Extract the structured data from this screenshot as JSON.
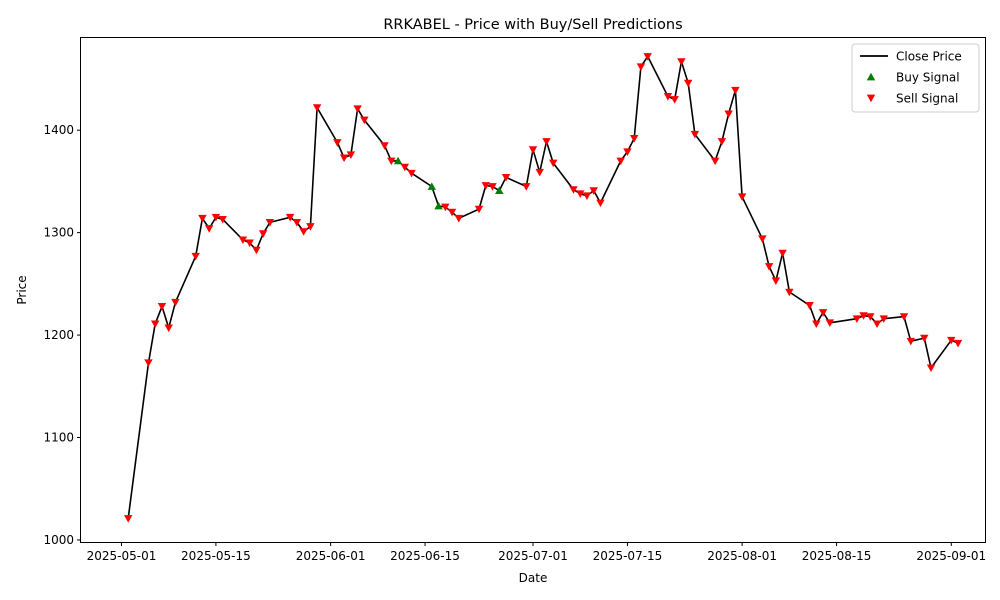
{
  "chart_data": {
    "type": "line",
    "title": "RRKABEL - Price with Buy/Sell Predictions",
    "xlabel": "Date",
    "ylabel": "Price",
    "xlim": [
      "2025-04-25",
      "2025-09-06"
    ],
    "ylim": [
      998,
      1490
    ],
    "x_ticks": [
      "2025-05-01",
      "2025-05-15",
      "2025-06-01",
      "2025-06-15",
      "2025-07-01",
      "2025-07-15",
      "2025-08-01",
      "2025-08-15",
      "2025-09-01"
    ],
    "y_ticks": [
      1000,
      1100,
      1200,
      1300,
      1400
    ],
    "grid": false,
    "legend": {
      "placement": "top-right",
      "entries": [
        {
          "label": "Close Price",
          "marker": "line",
          "color": "#000000"
        },
        {
          "label": "Buy Signal",
          "marker": "triangle-up",
          "color": "#008000"
        },
        {
          "label": "Sell Signal",
          "marker": "triangle-down",
          "color": "#ff0000"
        }
      ]
    },
    "series": [
      {
        "name": "Close Price",
        "color": "#000000",
        "points": [
          [
            "2025-05-02",
            1021
          ],
          [
            "2025-05-05",
            1173
          ],
          [
            "2025-05-06",
            1211
          ],
          [
            "2025-05-07",
            1228
          ],
          [
            "2025-05-08",
            1207
          ],
          [
            "2025-05-09",
            1232
          ],
          [
            "2025-05-12",
            1277
          ],
          [
            "2025-05-13",
            1314
          ],
          [
            "2025-05-14",
            1304
          ],
          [
            "2025-05-15",
            1315
          ],
          [
            "2025-05-16",
            1313
          ],
          [
            "2025-05-19",
            1293
          ],
          [
            "2025-05-20",
            1290
          ],
          [
            "2025-05-21",
            1283
          ],
          [
            "2025-05-22",
            1299
          ],
          [
            "2025-05-23",
            1310
          ],
          [
            "2025-05-26",
            1315
          ],
          [
            "2025-05-27",
            1310
          ],
          [
            "2025-05-28",
            1301
          ],
          [
            "2025-05-29",
            1306
          ],
          [
            "2025-05-30",
            1422
          ],
          [
            "2025-06-02",
            1388
          ],
          [
            "2025-06-03",
            1373
          ],
          [
            "2025-06-04",
            1376
          ],
          [
            "2025-06-05",
            1421
          ],
          [
            "2025-06-06",
            1410
          ],
          [
            "2025-06-09",
            1385
          ],
          [
            "2025-06-10",
            1370
          ],
          [
            "2025-06-11",
            1370
          ],
          [
            "2025-06-12",
            1364
          ],
          [
            "2025-06-13",
            1358
          ],
          [
            "2025-06-16",
            1345
          ],
          [
            "2025-06-17",
            1326
          ],
          [
            "2025-06-18",
            1325
          ],
          [
            "2025-06-19",
            1320
          ],
          [
            "2025-06-20",
            1314
          ],
          [
            "2025-06-23",
            1323
          ],
          [
            "2025-06-24",
            1346
          ],
          [
            "2025-06-25",
            1345
          ],
          [
            "2025-06-26",
            1341
          ],
          [
            "2025-06-27",
            1354
          ],
          [
            "2025-06-30",
            1345
          ],
          [
            "2025-07-01",
            1381
          ],
          [
            "2025-07-02",
            1359
          ],
          [
            "2025-07-03",
            1389
          ],
          [
            "2025-07-04",
            1368
          ],
          [
            "2025-07-07",
            1342
          ],
          [
            "2025-07-08",
            1338
          ],
          [
            "2025-07-09",
            1336
          ],
          [
            "2025-07-10",
            1341
          ],
          [
            "2025-07-11",
            1329
          ],
          [
            "2025-07-14",
            1370
          ],
          [
            "2025-07-15",
            1379
          ],
          [
            "2025-07-16",
            1392
          ],
          [
            "2025-07-17",
            1462
          ],
          [
            "2025-07-18",
            1472
          ],
          [
            "2025-07-21",
            1433
          ],
          [
            "2025-07-22",
            1430
          ],
          [
            "2025-07-23",
            1467
          ],
          [
            "2025-07-24",
            1446
          ],
          [
            "2025-07-25",
            1396
          ],
          [
            "2025-07-28",
            1370
          ],
          [
            "2025-07-29",
            1389
          ],
          [
            "2025-07-30",
            1416
          ],
          [
            "2025-07-31",
            1439
          ],
          [
            "2025-08-01",
            1335
          ],
          [
            "2025-08-04",
            1294
          ],
          [
            "2025-08-05",
            1267
          ],
          [
            "2025-08-06",
            1253
          ],
          [
            "2025-08-07",
            1280
          ],
          [
            "2025-08-08",
            1242
          ],
          [
            "2025-08-11",
            1229
          ],
          [
            "2025-08-12",
            1211
          ],
          [
            "2025-08-13",
            1222
          ],
          [
            "2025-08-14",
            1212
          ],
          [
            "2025-08-18",
            1216
          ],
          [
            "2025-08-19",
            1219
          ],
          [
            "2025-08-20",
            1218
          ],
          [
            "2025-08-21",
            1211
          ],
          [
            "2025-08-22",
            1216
          ],
          [
            "2025-08-25",
            1218
          ],
          [
            "2025-08-26",
            1194
          ],
          [
            "2025-08-28",
            1197
          ],
          [
            "2025-08-29",
            1168
          ],
          [
            "2025-09-01",
            1195
          ],
          [
            "2025-09-02",
            1192
          ]
        ]
      },
      {
        "name": "Buy Signal",
        "color": "#008000",
        "points": [
          [
            "2025-06-11",
            1370
          ],
          [
            "2025-06-16",
            1345
          ],
          [
            "2025-06-17",
            1326
          ],
          [
            "2025-06-26",
            1341
          ]
        ]
      },
      {
        "name": "Sell Signal",
        "color": "#ff0000",
        "points": [
          [
            "2025-05-02",
            1021
          ],
          [
            "2025-05-05",
            1173
          ],
          [
            "2025-05-06",
            1211
          ],
          [
            "2025-05-07",
            1228
          ],
          [
            "2025-05-08",
            1207
          ],
          [
            "2025-05-09",
            1232
          ],
          [
            "2025-05-12",
            1277
          ],
          [
            "2025-05-13",
            1314
          ],
          [
            "2025-05-14",
            1304
          ],
          [
            "2025-05-15",
            1315
          ],
          [
            "2025-05-16",
            1313
          ],
          [
            "2025-05-19",
            1293
          ],
          [
            "2025-05-20",
            1290
          ],
          [
            "2025-05-21",
            1283
          ],
          [
            "2025-05-22",
            1299
          ],
          [
            "2025-05-23",
            1310
          ],
          [
            "2025-05-26",
            1315
          ],
          [
            "2025-05-27",
            1310
          ],
          [
            "2025-05-28",
            1301
          ],
          [
            "2025-05-29",
            1306
          ],
          [
            "2025-05-30",
            1422
          ],
          [
            "2025-06-02",
            1388
          ],
          [
            "2025-06-03",
            1373
          ],
          [
            "2025-06-04",
            1376
          ],
          [
            "2025-06-05",
            1421
          ],
          [
            "2025-06-06",
            1410
          ],
          [
            "2025-06-09",
            1385
          ],
          [
            "2025-06-10",
            1370
          ],
          [
            "2025-06-12",
            1364
          ],
          [
            "2025-06-13",
            1358
          ],
          [
            "2025-06-18",
            1325
          ],
          [
            "2025-06-19",
            1320
          ],
          [
            "2025-06-20",
            1314
          ],
          [
            "2025-06-23",
            1323
          ],
          [
            "2025-06-24",
            1346
          ],
          [
            "2025-06-25",
            1345
          ],
          [
            "2025-06-27",
            1354
          ],
          [
            "2025-06-30",
            1345
          ],
          [
            "2025-07-01",
            1381
          ],
          [
            "2025-07-02",
            1359
          ],
          [
            "2025-07-03",
            1389
          ],
          [
            "2025-07-04",
            1368
          ],
          [
            "2025-07-07",
            1342
          ],
          [
            "2025-07-08",
            1338
          ],
          [
            "2025-07-09",
            1336
          ],
          [
            "2025-07-10",
            1341
          ],
          [
            "2025-07-11",
            1329
          ],
          [
            "2025-07-14",
            1370
          ],
          [
            "2025-07-15",
            1379
          ],
          [
            "2025-07-16",
            1392
          ],
          [
            "2025-07-17",
            1462
          ],
          [
            "2025-07-18",
            1472
          ],
          [
            "2025-07-21",
            1433
          ],
          [
            "2025-07-22",
            1430
          ],
          [
            "2025-07-23",
            1467
          ],
          [
            "2025-07-24",
            1446
          ],
          [
            "2025-07-25",
            1396
          ],
          [
            "2025-07-28",
            1370
          ],
          [
            "2025-07-29",
            1389
          ],
          [
            "2025-07-30",
            1416
          ],
          [
            "2025-07-31",
            1439
          ],
          [
            "2025-08-01",
            1335
          ],
          [
            "2025-08-04",
            1294
          ],
          [
            "2025-08-05",
            1267
          ],
          [
            "2025-08-06",
            1253
          ],
          [
            "2025-08-07",
            1280
          ],
          [
            "2025-08-08",
            1242
          ],
          [
            "2025-08-11",
            1229
          ],
          [
            "2025-08-12",
            1211
          ],
          [
            "2025-08-13",
            1222
          ],
          [
            "2025-08-14",
            1212
          ],
          [
            "2025-08-18",
            1216
          ],
          [
            "2025-08-19",
            1219
          ],
          [
            "2025-08-20",
            1218
          ],
          [
            "2025-08-21",
            1211
          ],
          [
            "2025-08-22",
            1216
          ],
          [
            "2025-08-25",
            1218
          ],
          [
            "2025-08-26",
            1194
          ],
          [
            "2025-08-28",
            1197
          ],
          [
            "2025-08-29",
            1168
          ],
          [
            "2025-09-01",
            1195
          ],
          [
            "2025-09-02",
            1192
          ]
        ]
      }
    ]
  }
}
